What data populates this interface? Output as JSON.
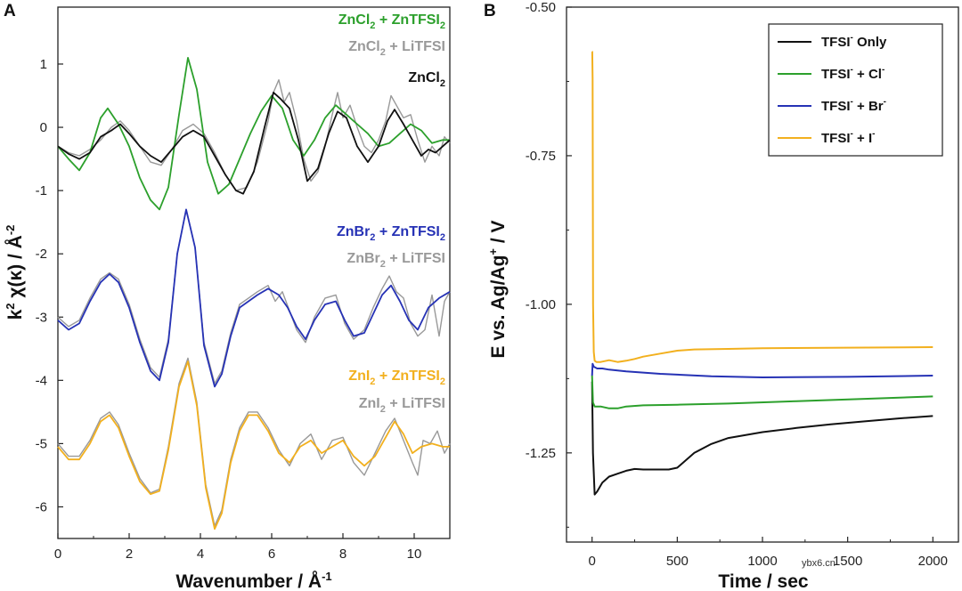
{
  "watermark": "ybx6.cn",
  "chart_data": [
    {
      "panel": "A",
      "type": "line",
      "xlabel": "Wavenumber / Å-1",
      "ylabel": "k2 χ(κ) / Å-2",
      "xlim": [
        0,
        11
      ],
      "ylim": [
        -6.5,
        1.9
      ],
      "xticks": [
        0,
        2,
        4,
        6,
        8,
        10
      ],
      "yticks": [
        1,
        0,
        -1,
        -2,
        -3,
        -4,
        -5,
        -6
      ],
      "grid": false,
      "series_labels": [
        {
          "text": "ZnCl2 + ZnTFSI2",
          "base": "ZnCl",
          "sub1": "2",
          "mid": " + ZnTFSI",
          "sub2": "2",
          "color": "#2ca02c"
        },
        {
          "text": "ZnCl2 + LiTFSI",
          "base": "ZnCl",
          "sub1": "2",
          "mid": " + LiTFSI",
          "sub2": "",
          "color": "#999999"
        },
        {
          "text": "ZnCl2",
          "base": "ZnCl",
          "sub1": "2",
          "mid": "",
          "sub2": "",
          "color": "#111111"
        },
        {
          "text": "ZnBr2 + ZnTFSI2",
          "base": "ZnBr",
          "sub1": "2",
          "mid": " + ZnTFSI",
          "sub2": "2",
          "color": "#2632b5"
        },
        {
          "text": "ZnBr2 + LiTFSI",
          "base": "ZnBr",
          "sub1": "2",
          "mid": " + LiTFSI",
          "sub2": "",
          "color": "#999999"
        },
        {
          "text": "ZnI2 + ZnTFSI2",
          "base": "ZnI",
          "sub1": "2",
          "mid": " + ZnTFSI",
          "sub2": "2",
          "color": "#f2b01e"
        },
        {
          "text": "ZnI2 + LiTFSI",
          "base": "ZnI",
          "sub1": "2",
          "mid": " + LiTFSI",
          "sub2": "",
          "color": "#999999"
        }
      ],
      "series": [
        {
          "name": "ZnCl2 + ZnTFSI2",
          "color": "#2ca02c",
          "x": [
            0,
            0.3,
            0.6,
            0.9,
            1.2,
            1.4,
            1.7,
            2.0,
            2.3,
            2.6,
            2.85,
            3.1,
            3.4,
            3.65,
            3.9,
            4.2,
            4.5,
            4.8,
            5.1,
            5.4,
            5.7,
            6.0,
            6.3,
            6.6,
            6.9,
            7.2,
            7.5,
            7.8,
            8.1,
            8.4,
            8.7,
            9.0,
            9.3,
            9.6,
            9.9,
            10.2,
            10.5,
            10.8,
            11.0
          ],
          "y": [
            -0.3,
            -0.5,
            -0.68,
            -0.4,
            0.15,
            0.3,
            0.05,
            -0.3,
            -0.8,
            -1.15,
            -1.3,
            -0.95,
            0.2,
            1.1,
            0.6,
            -0.55,
            -1.05,
            -0.9,
            -0.5,
            -0.1,
            0.25,
            0.5,
            0.3,
            -0.2,
            -0.45,
            -0.2,
            0.15,
            0.35,
            0.2,
            0.05,
            -0.1,
            -0.3,
            -0.25,
            -0.1,
            0.05,
            -0.05,
            -0.25,
            -0.2,
            -0.2
          ]
        },
        {
          "name": "ZnCl2 + LiTFSI",
          "color": "#999999",
          "x": [
            0,
            0.3,
            0.6,
            0.9,
            1.2,
            1.5,
            1.75,
            2.0,
            2.3,
            2.6,
            2.9,
            3.2,
            3.5,
            3.8,
            4.1,
            4.4,
            4.7,
            5.0,
            5.3,
            5.6,
            5.9,
            6.05,
            6.2,
            6.35,
            6.5,
            6.7,
            6.9,
            7.1,
            7.3,
            7.5,
            7.7,
            7.85,
            8.0,
            8.2,
            8.4,
            8.6,
            8.8,
            9.0,
            9.2,
            9.35,
            9.5,
            9.7,
            9.9,
            10.1,
            10.3,
            10.5,
            10.7,
            10.85,
            11.0
          ],
          "y": [
            -0.3,
            -0.4,
            -0.45,
            -0.35,
            -0.2,
            0.0,
            0.1,
            -0.05,
            -0.3,
            -0.55,
            -0.6,
            -0.35,
            -0.05,
            0.05,
            -0.1,
            -0.4,
            -0.75,
            -1.0,
            -0.95,
            -0.55,
            0.1,
            0.55,
            0.75,
            0.4,
            0.55,
            0.1,
            -0.5,
            -0.85,
            -0.7,
            -0.3,
            0.2,
            0.55,
            0.15,
            0.35,
            0.0,
            -0.3,
            -0.4,
            -0.2,
            0.1,
            0.5,
            0.35,
            0.15,
            0.2,
            -0.2,
            -0.55,
            -0.3,
            -0.45,
            -0.15,
            -0.25
          ]
        },
        {
          "name": "ZnCl2",
          "color": "#111111",
          "x": [
            0,
            0.3,
            0.6,
            0.9,
            1.2,
            1.5,
            1.75,
            2.0,
            2.3,
            2.6,
            2.9,
            3.2,
            3.5,
            3.8,
            4.1,
            4.4,
            4.7,
            5.0,
            5.2,
            5.5,
            5.8,
            6.05,
            6.25,
            6.5,
            6.75,
            7.0,
            7.3,
            7.6,
            7.85,
            8.1,
            8.4,
            8.7,
            9.0,
            9.25,
            9.45,
            9.7,
            9.95,
            10.2,
            10.4,
            10.6,
            10.8,
            11.0
          ],
          "y": [
            -0.3,
            -0.42,
            -0.5,
            -0.4,
            -0.15,
            -0.05,
            0.05,
            -0.1,
            -0.3,
            -0.45,
            -0.55,
            -0.35,
            -0.15,
            -0.05,
            -0.15,
            -0.45,
            -0.75,
            -1.0,
            -1.05,
            -0.7,
            0.0,
            0.55,
            0.45,
            0.3,
            -0.2,
            -0.85,
            -0.65,
            -0.1,
            0.25,
            0.15,
            -0.3,
            -0.55,
            -0.3,
            0.1,
            0.28,
            0.05,
            -0.2,
            -0.45,
            -0.35,
            -0.4,
            -0.3,
            -0.2
          ]
        },
        {
          "name": "ZnBr2 + ZnTFSI2",
          "color": "#2632b5",
          "x": [
            0,
            0.3,
            0.6,
            0.9,
            1.2,
            1.45,
            1.7,
            2.0,
            2.3,
            2.6,
            2.85,
            3.1,
            3.35,
            3.6,
            3.85,
            4.1,
            4.4,
            4.6,
            4.85,
            5.1,
            5.35,
            5.6,
            5.9,
            6.2,
            6.45,
            6.7,
            6.95,
            7.2,
            7.5,
            7.8,
            8.05,
            8.3,
            8.6,
            8.85,
            9.1,
            9.35,
            9.6,
            9.85,
            10.1,
            10.4,
            10.7,
            11.0
          ],
          "y": [
            -3.05,
            -3.2,
            -3.1,
            -2.75,
            -2.45,
            -2.32,
            -2.45,
            -2.85,
            -3.4,
            -3.85,
            -4.0,
            -3.4,
            -2.0,
            -1.3,
            -1.9,
            -3.45,
            -4.1,
            -3.9,
            -3.3,
            -2.85,
            -2.75,
            -2.65,
            -2.55,
            -2.65,
            -2.85,
            -3.15,
            -3.35,
            -3.05,
            -2.8,
            -2.75,
            -3.05,
            -3.3,
            -3.25,
            -2.95,
            -2.65,
            -2.5,
            -2.75,
            -3.05,
            -3.2,
            -2.85,
            -2.7,
            -2.6
          ]
        },
        {
          "name": "ZnBr2 + LiTFSI",
          "color": "#999999",
          "x": [
            0,
            0.3,
            0.6,
            0.9,
            1.2,
            1.45,
            1.7,
            2.0,
            2.3,
            2.6,
            2.85,
            3.1,
            3.35,
            3.6,
            3.85,
            4.1,
            4.4,
            4.6,
            4.85,
            5.1,
            5.35,
            5.6,
            5.9,
            6.1,
            6.3,
            6.5,
            6.7,
            6.95,
            7.2,
            7.5,
            7.8,
            8.05,
            8.3,
            8.6,
            8.85,
            9.1,
            9.3,
            9.5,
            9.7,
            9.9,
            10.1,
            10.3,
            10.5,
            10.7,
            10.85,
            11.0
          ],
          "y": [
            -3.0,
            -3.15,
            -3.05,
            -2.7,
            -2.4,
            -2.3,
            -2.4,
            -2.8,
            -3.35,
            -3.8,
            -3.95,
            -3.35,
            -2.0,
            -1.3,
            -1.9,
            -3.4,
            -4.05,
            -3.85,
            -3.25,
            -2.8,
            -2.7,
            -2.6,
            -2.5,
            -2.75,
            -2.6,
            -2.9,
            -3.2,
            -3.4,
            -3.0,
            -2.7,
            -2.65,
            -3.1,
            -3.35,
            -3.2,
            -2.85,
            -2.55,
            -2.35,
            -2.6,
            -2.7,
            -3.1,
            -3.3,
            -3.2,
            -2.65,
            -3.3,
            -2.75,
            -2.6
          ]
        },
        {
          "name": "ZnI2 + ZnTFSI2",
          "color": "#f2b01e",
          "x": [
            0,
            0.3,
            0.6,
            0.9,
            1.2,
            1.45,
            1.7,
            2.0,
            2.3,
            2.6,
            2.85,
            3.1,
            3.4,
            3.65,
            3.9,
            4.15,
            4.4,
            4.6,
            4.85,
            5.1,
            5.35,
            5.6,
            5.9,
            6.2,
            6.5,
            6.8,
            7.1,
            7.4,
            7.7,
            8.0,
            8.3,
            8.6,
            8.9,
            9.2,
            9.45,
            9.7,
            9.95,
            10.2,
            10.5,
            10.8,
            11.0
          ],
          "y": [
            -5.05,
            -5.25,
            -5.25,
            -5.0,
            -4.65,
            -4.55,
            -4.75,
            -5.2,
            -5.6,
            -5.8,
            -5.75,
            -5.1,
            -4.1,
            -3.7,
            -4.4,
            -5.7,
            -6.35,
            -6.1,
            -5.3,
            -4.8,
            -4.55,
            -4.55,
            -4.8,
            -5.15,
            -5.3,
            -5.05,
            -4.95,
            -5.15,
            -5.05,
            -4.95,
            -5.2,
            -5.35,
            -5.2,
            -4.9,
            -4.65,
            -4.85,
            -5.15,
            -5.05,
            -5.0,
            -5.05,
            -5.05
          ]
        },
        {
          "name": "ZnI2 + LiTFSI",
          "color": "#999999",
          "x": [
            0,
            0.3,
            0.6,
            0.9,
            1.2,
            1.45,
            1.7,
            2.0,
            2.3,
            2.6,
            2.85,
            3.1,
            3.4,
            3.65,
            3.9,
            4.15,
            4.4,
            4.6,
            4.85,
            5.1,
            5.35,
            5.6,
            5.9,
            6.2,
            6.5,
            6.8,
            7.1,
            7.4,
            7.7,
            8.0,
            8.3,
            8.6,
            8.9,
            9.2,
            9.45,
            9.7,
            9.95,
            10.1,
            10.25,
            10.45,
            10.65,
            10.85,
            11.0
          ],
          "y": [
            -5.0,
            -5.2,
            -5.2,
            -4.95,
            -4.6,
            -4.5,
            -4.7,
            -5.15,
            -5.55,
            -5.78,
            -5.72,
            -5.05,
            -4.05,
            -3.65,
            -4.35,
            -5.65,
            -6.3,
            -6.05,
            -5.25,
            -4.75,
            -4.5,
            -4.5,
            -4.75,
            -5.1,
            -5.35,
            -5.0,
            -4.85,
            -5.25,
            -4.95,
            -4.9,
            -5.3,
            -5.5,
            -5.15,
            -4.8,
            -4.6,
            -4.95,
            -5.3,
            -5.5,
            -4.95,
            -5.0,
            -4.8,
            -5.15,
            -5.0
          ]
        }
      ]
    },
    {
      "panel": "B",
      "type": "line",
      "xlabel": "Time / sec",
      "ylabel": "E vs. Ag/Ag+ / V",
      "xlim": [
        -150,
        2150
      ],
      "ylim": [
        -1.4,
        -0.5
      ],
      "xticks": [
        0,
        500,
        1000,
        1500,
        2000
      ],
      "yticks": [
        -0.5,
        -0.75,
        -1.0,
        -1.25
      ],
      "ytick_labels": [
        "-0.50",
        "-0.75",
        "-1.00",
        "-1.25"
      ],
      "grid": false,
      "legend_position": "top-right",
      "legend": [
        {
          "label": "TFSI- Only",
          "base": "TFSI",
          "sup": "-",
          "rest": " Only",
          "color": "#111111"
        },
        {
          "label": "TFSI- + Cl-",
          "base": "TFSI",
          "sup": "-",
          "rest": " + Cl",
          "sup2": "-",
          "color": "#2ca02c"
        },
        {
          "label": "TFSI- + Br-",
          "base": "TFSI",
          "sup": "-",
          "rest": " + Br",
          "sup2": "-",
          "color": "#2632b5"
        },
        {
          "label": "TFSI- + I-",
          "base": "TFSI",
          "sup": "-",
          "rest": " + I",
          "sup2": "-",
          "color": "#f2b01e"
        }
      ],
      "series": [
        {
          "name": "TFSI- Only",
          "color": "#111111",
          "x": [
            0,
            5,
            15,
            30,
            60,
            100,
            150,
            200,
            250,
            300,
            350,
            400,
            450,
            500,
            600,
            700,
            800,
            1000,
            1200,
            1400,
            1600,
            1800,
            2000
          ],
          "y": [
            -1.13,
            -1.25,
            -1.32,
            -1.315,
            -1.3,
            -1.29,
            -1.285,
            -1.28,
            -1.277,
            -1.278,
            -1.278,
            -1.278,
            -1.278,
            -1.275,
            -1.25,
            -1.235,
            -1.225,
            -1.215,
            -1.208,
            -1.202,
            -1.197,
            -1.192,
            -1.188
          ]
        },
        {
          "name": "TFSI- + Cl-",
          "color": "#2ca02c",
          "x": [
            0,
            5,
            15,
            50,
            100,
            150,
            200,
            300,
            500,
            800,
            1200,
            1600,
            2000
          ],
          "y": [
            -1.12,
            -1.165,
            -1.172,
            -1.172,
            -1.175,
            -1.175,
            -1.172,
            -1.17,
            -1.169,
            -1.167,
            -1.163,
            -1.159,
            -1.155
          ]
        },
        {
          "name": "TFSI- + Br-",
          "color": "#2632b5",
          "x": [
            0,
            3,
            10,
            30,
            60,
            100,
            200,
            400,
            700,
            1000,
            1500,
            2000
          ],
          "y": [
            -1.12,
            -1.1,
            -1.105,
            -1.108,
            -1.108,
            -1.11,
            -1.113,
            -1.117,
            -1.121,
            -1.123,
            -1.122,
            -1.12
          ]
        },
        {
          "name": "TFSI- + I-",
          "color": "#f2b01e",
          "x": [
            0,
            1,
            3,
            6,
            10,
            15,
            25,
            50,
            100,
            150,
            200,
            250,
            300,
            400,
            500,
            600,
            800,
            1000,
            1500,
            2000
          ],
          "y": [
            -0.575,
            -0.575,
            -0.62,
            -1.0,
            -1.08,
            -1.095,
            -1.097,
            -1.097,
            -1.094,
            -1.097,
            -1.095,
            -1.092,
            -1.088,
            -1.083,
            -1.078,
            -1.076,
            -1.075,
            -1.074,
            -1.073,
            -1.072
          ]
        }
      ]
    }
  ]
}
